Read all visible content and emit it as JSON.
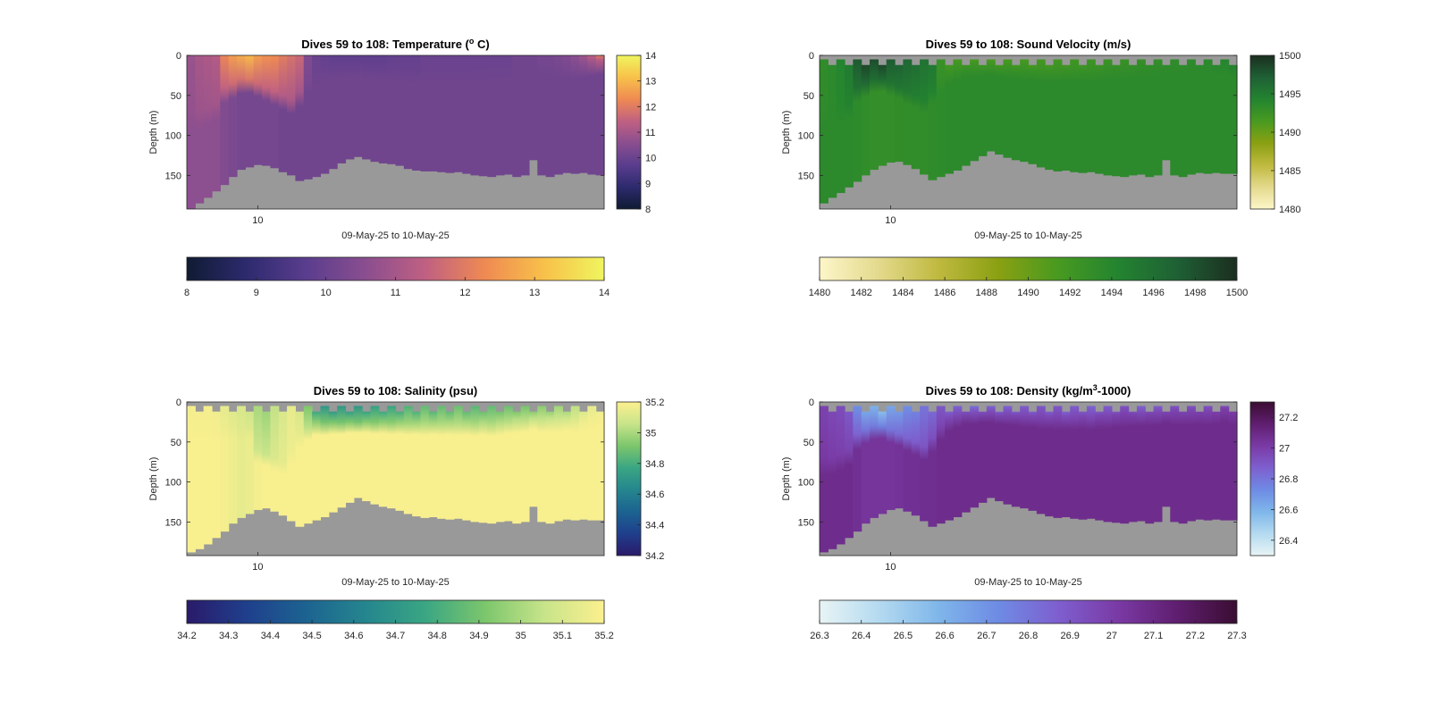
{
  "figure": {
    "background": "#ffffff",
    "terrain_color": "#999999"
  },
  "chart_data": [
    {
      "type": "heatmap",
      "title_main": "Dives 59 to 108: Temperature (",
      "title_sup": "o",
      "title_end": " C)",
      "xlabel": "09-May-25 to 10-May-25",
      "ylabel": "Depth (m)",
      "x_tick_labels": [
        "10"
      ],
      "y_ticks": [
        0,
        50,
        100,
        150
      ],
      "ylim": [
        0,
        192
      ],
      "invert_y": true,
      "dives": 50,
      "clim": [
        8,
        14
      ],
      "colormap": [
        "#0f1b33",
        "#2d2a6e",
        "#5a3d8e",
        "#8a4e8f",
        "#c06082",
        "#ef8a52",
        "#f8c14a",
        "#eff55f"
      ],
      "colorbar_right_ticks": [
        8,
        9,
        10,
        11,
        12,
        13,
        14
      ],
      "colorbar_bottom_ticks": [
        8,
        9,
        10,
        11,
        12,
        13,
        14
      ],
      "surface_depth_m": [
        0,
        0,
        0,
        0,
        0,
        0,
        0,
        0,
        0,
        0,
        0,
        0,
        0,
        0,
        0,
        0,
        0,
        0,
        0,
        0,
        0,
        0,
        0,
        0,
        0,
        0,
        0,
        0,
        0,
        0,
        0,
        0,
        0,
        0,
        0,
        0,
        0,
        0,
        0,
        0,
        0,
        0,
        0,
        0,
        0,
        0,
        0,
        0,
        0,
        0
      ],
      "bottom_depth_m": [
        192,
        185,
        178,
        170,
        162,
        152,
        143,
        140,
        137,
        138,
        141,
        146,
        150,
        157,
        155,
        152,
        148,
        142,
        135,
        130,
        127,
        130,
        133,
        135,
        136,
        138,
        142,
        144,
        145,
        145,
        146,
        147,
        146,
        148,
        150,
        151,
        152,
        150,
        149,
        152,
        150,
        131,
        150,
        152,
        149,
        147,
        148,
        147,
        149,
        150
      ],
      "mixed_layer_m": [
        70,
        70,
        65,
        60,
        40,
        35,
        30,
        30,
        35,
        40,
        45,
        50,
        55,
        45,
        30,
        20,
        15,
        12,
        12,
        12,
        12,
        14,
        14,
        15,
        16,
        17,
        18,
        18,
        18,
        18,
        18,
        18,
        18,
        17,
        16,
        15,
        14,
        14,
        13,
        13,
        12,
        12,
        12,
        12,
        12,
        12,
        12,
        10,
        8,
        6
      ],
      "surface_value": [
        10.8,
        11.0,
        11.1,
        11.2,
        12.2,
        12.6,
        12.8,
        13.0,
        12.6,
        12.4,
        12.3,
        12.0,
        11.8,
        11.6,
        10.4,
        10.0,
        9.9,
        9.8,
        9.8,
        9.8,
        9.8,
        9.8,
        9.8,
        9.8,
        9.9,
        9.9,
        9.9,
        9.9,
        10.0,
        10.0,
        10.0,
        10.0,
        10.0,
        10.0,
        10.0,
        10.0,
        10.0,
        10.0,
        10.0,
        10.1,
        10.1,
        10.1,
        10.2,
        10.2,
        10.3,
        10.4,
        10.6,
        10.9,
        11.4,
        12.0
      ],
      "deep_value": [
        10.6,
        10.6,
        10.6,
        10.6,
        10.4,
        10.3,
        10.2,
        10.2,
        10.2,
        10.2,
        10.2,
        10.1,
        10.1,
        10.1,
        10.1,
        10.1,
        10.1,
        10.1,
        10.1,
        10.1,
        10.1,
        10.1,
        10.1,
        10.1,
        10.1,
        10.1,
        10.1,
        10.1,
        10.1,
        10.1,
        10.1,
        10.1,
        10.1,
        10.1,
        10.1,
        10.1,
        10.1,
        10.1,
        10.1,
        10.1,
        10.1,
        10.1,
        10.1,
        10.1,
        10.1,
        10.1,
        10.1,
        10.1,
        10.1,
        10.1
      ]
    },
    {
      "type": "heatmap",
      "title_main": "Dives 59 to 108: Sound Velocity (m/s)",
      "title_sup": "",
      "title_end": "",
      "xlabel": "09-May-25 to 10-May-25",
      "ylabel": "Depth (m)",
      "x_tick_labels": [
        "10"
      ],
      "y_ticks": [
        0,
        50,
        100,
        150
      ],
      "ylim": [
        0,
        192
      ],
      "invert_y": true,
      "dives": 50,
      "clim": [
        1480,
        1500
      ],
      "colormap": [
        "#fdf6c9",
        "#e3d98c",
        "#bfb93f",
        "#8aa012",
        "#489a20",
        "#238430",
        "#1f6035",
        "#1b2e1f"
      ],
      "colorbar_right_ticks": [
        1480,
        1485,
        1490,
        1495,
        1500
      ],
      "colorbar_bottom_ticks": [
        1480,
        1482,
        1484,
        1486,
        1488,
        1490,
        1492,
        1494,
        1496,
        1498,
        1500
      ],
      "surface_depth_m": [
        5,
        12,
        5,
        12,
        5,
        12,
        5,
        12,
        5,
        12,
        5,
        12,
        5,
        12,
        5,
        12,
        5,
        12,
        5,
        12,
        5,
        12,
        5,
        12,
        5,
        12,
        5,
        12,
        5,
        12,
        5,
        12,
        5,
        12,
        5,
        12,
        5,
        12,
        5,
        12,
        5,
        12,
        5,
        12,
        5,
        12,
        5,
        12,
        5,
        12
      ],
      "bottom_depth_m": [
        185,
        178,
        172,
        165,
        158,
        150,
        143,
        138,
        134,
        133,
        137,
        142,
        149,
        156,
        152,
        148,
        144,
        138,
        132,
        126,
        120,
        124,
        128,
        131,
        133,
        136,
        140,
        143,
        145,
        144,
        146,
        147,
        146,
        148,
        150,
        151,
        152,
        150,
        149,
        152,
        150,
        131,
        150,
        152,
        149,
        147,
        148,
        147,
        148,
        148
      ],
      "mixed_layer_m": [
        70,
        70,
        65,
        60,
        40,
        35,
        30,
        30,
        35,
        40,
        45,
        50,
        55,
        45,
        30,
        20,
        15,
        12,
        12,
        12,
        12,
        14,
        14,
        15,
        16,
        17,
        18,
        18,
        18,
        18,
        18,
        18,
        18,
        17,
        16,
        15,
        14,
        14,
        13,
        13,
        12,
        12,
        12,
        12,
        12,
        12,
        12,
        10,
        8,
        6
      ],
      "surface_value": [
        1493.2,
        1493.6,
        1494.2,
        1495.0,
        1497.5,
        1498.6,
        1498.2,
        1498.6,
        1497.4,
        1497.0,
        1496.6,
        1496.0,
        1495.6,
        1495.2,
        1492.6,
        1491.8,
        1491.5,
        1491.4,
        1491.4,
        1491.4,
        1491.4,
        1491.4,
        1491.5,
        1491.5,
        1491.6,
        1491.6,
        1491.7,
        1491.7,
        1491.8,
        1491.9,
        1492.0,
        1492.1,
        1492.2,
        1492.3,
        1492.4,
        1492.5,
        1492.6,
        1492.7,
        1492.8,
        1492.9,
        1493.0,
        1493.1,
        1493.2,
        1493.3,
        1493.4,
        1493.5,
        1493.6,
        1493.8,
        1494.2,
        1494.8
      ],
      "deep_value": [
        1493.6,
        1493.6,
        1493.6,
        1493.6,
        1493.4,
        1493.2,
        1493.0,
        1493.0,
        1493.0,
        1493.1,
        1493.2,
        1493.2,
        1493.2,
        1493.3,
        1493.4,
        1493.5,
        1493.6,
        1493.6,
        1493.6,
        1493.6,
        1493.6,
        1493.6,
        1493.6,
        1493.6,
        1493.6,
        1493.6,
        1493.6,
        1493.6,
        1493.6,
        1493.6,
        1493.6,
        1493.6,
        1493.6,
        1493.6,
        1493.6,
        1493.6,
        1493.6,
        1493.6,
        1493.6,
        1493.6,
        1493.6,
        1493.6,
        1493.6,
        1493.6,
        1493.6,
        1493.6,
        1493.6,
        1493.6,
        1493.6,
        1493.6
      ]
    },
    {
      "type": "heatmap",
      "title_main": "Dives 59 to 108: Salinity (psu)",
      "title_sup": "",
      "title_end": "",
      "xlabel": "09-May-25 to 10-May-25",
      "ylabel": "Depth (m)",
      "x_tick_labels": [
        "10"
      ],
      "y_ticks": [
        0,
        50,
        100,
        150
      ],
      "ylim": [
        0,
        192
      ],
      "invert_y": true,
      "dives": 50,
      "clim": [
        34.2,
        35.2
      ],
      "colormap": [
        "#2a1a6a",
        "#1f3f8c",
        "#1c6391",
        "#25868e",
        "#3aa683",
        "#7cc66c",
        "#c8e48a",
        "#fcf08f"
      ],
      "colorbar_right_ticks": [
        34.2,
        34.4,
        34.6,
        34.8,
        35,
        35.2
      ],
      "colorbar_bottom_ticks": [
        34.2,
        34.3,
        34.4,
        34.5,
        34.6,
        34.7,
        34.8,
        34.9,
        35,
        35.1,
        35.2
      ],
      "surface_depth_m": [
        5,
        12,
        5,
        12,
        5,
        12,
        5,
        12,
        5,
        12,
        5,
        12,
        5,
        12,
        5,
        12,
        5,
        12,
        5,
        12,
        5,
        12,
        5,
        12,
        5,
        12,
        5,
        12,
        5,
        12,
        5,
        12,
        5,
        12,
        5,
        12,
        5,
        12,
        5,
        12,
        5,
        12,
        5,
        12,
        5,
        12,
        5,
        12,
        5,
        12
      ],
      "bottom_depth_m": [
        188,
        184,
        178,
        170,
        162,
        152,
        145,
        140,
        135,
        133,
        137,
        142,
        149,
        156,
        152,
        148,
        144,
        138,
        132,
        126,
        120,
        124,
        128,
        131,
        133,
        136,
        140,
        143,
        145,
        144,
        146,
        147,
        146,
        148,
        150,
        151,
        152,
        150,
        149,
        152,
        150,
        131,
        150,
        152,
        149,
        147,
        148,
        147,
        148,
        148
      ],
      "mixed_layer_m": [
        30,
        30,
        30,
        30,
        30,
        30,
        30,
        30,
        60,
        65,
        70,
        75,
        60,
        40,
        30,
        25,
        25,
        25,
        25,
        25,
        25,
        25,
        25,
        25,
        25,
        25,
        25,
        25,
        25,
        25,
        25,
        25,
        25,
        25,
        25,
        25,
        25,
        25,
        22,
        22,
        20,
        20,
        20,
        20,
        20,
        20,
        20,
        18,
        16,
        15
      ],
      "surface_value": [
        35.18,
        35.18,
        35.18,
        35.17,
        35.14,
        35.12,
        35.1,
        35.08,
        35.0,
        34.98,
        35.05,
        35.1,
        35.14,
        35.1,
        34.92,
        34.78,
        34.7,
        34.72,
        34.7,
        34.74,
        34.7,
        34.76,
        34.74,
        34.78,
        34.76,
        34.8,
        34.82,
        34.82,
        34.86,
        34.84,
        34.86,
        34.86,
        34.88,
        34.86,
        34.84,
        34.88,
        34.86,
        34.9,
        34.88,
        34.92,
        34.9,
        34.94,
        34.94,
        34.96,
        34.98,
        35.0,
        35.04,
        35.1,
        35.14,
        35.16
      ],
      "deep_value": [
        35.19,
        35.19,
        35.19,
        35.19,
        35.18,
        35.16,
        35.14,
        35.15,
        35.18,
        35.19,
        35.19,
        35.19,
        35.19,
        35.19,
        35.19,
        35.19,
        35.19,
        35.19,
        35.19,
        35.19,
        35.19,
        35.19,
        35.19,
        35.19,
        35.19,
        35.19,
        35.19,
        35.19,
        35.19,
        35.19,
        35.19,
        35.19,
        35.19,
        35.19,
        35.19,
        35.19,
        35.19,
        35.19,
        35.19,
        35.19,
        35.19,
        35.19,
        35.19,
        35.19,
        35.19,
        35.19,
        35.19,
        35.19,
        35.19,
        35.19
      ]
    },
    {
      "type": "heatmap",
      "title_main": "Dives 59 to 108: Density (kg/m",
      "title_sup": "3",
      "title_end": "-1000)",
      "xlabel": "09-May-25 to 10-May-25",
      "ylabel": "Depth (m)",
      "x_tick_labels": [
        "10"
      ],
      "y_ticks": [
        0,
        50,
        100,
        150
      ],
      "ylim": [
        0,
        192
      ],
      "invert_y": true,
      "dives": 50,
      "clim": [
        26.3,
        27.3
      ],
      "colormap": [
        "#e8f4f5",
        "#b4daf0",
        "#7fb6ea",
        "#6e8be4",
        "#7e5fcf",
        "#7a3aa5",
        "#5f1e6f",
        "#3a0d32"
      ],
      "colorbar_right_ticks": [
        26.4,
        26.6,
        26.8,
        27,
        27.2
      ],
      "colorbar_bottom_ticks": [
        26.3,
        26.4,
        26.5,
        26.6,
        26.7,
        26.8,
        26.9,
        27,
        27.1,
        27.2,
        27.3
      ],
      "surface_depth_m": [
        5,
        12,
        5,
        12,
        5,
        12,
        5,
        12,
        5,
        12,
        5,
        12,
        5,
        12,
        5,
        12,
        5,
        12,
        5,
        12,
        5,
        12,
        5,
        12,
        5,
        12,
        5,
        12,
        5,
        12,
        5,
        12,
        5,
        12,
        5,
        12,
        5,
        12,
        5,
        12,
        5,
        12,
        5,
        12,
        5,
        12,
        5,
        12,
        5,
        12
      ],
      "bottom_depth_m": [
        188,
        184,
        178,
        170,
        162,
        152,
        145,
        140,
        135,
        133,
        137,
        142,
        149,
        156,
        152,
        148,
        144,
        138,
        132,
        126,
        120,
        124,
        128,
        131,
        133,
        136,
        140,
        143,
        145,
        144,
        146,
        147,
        146,
        148,
        150,
        151,
        152,
        150,
        149,
        152,
        150,
        131,
        150,
        152,
        149,
        147,
        148,
        147,
        148,
        148
      ],
      "mixed_layer_m": [
        70,
        70,
        65,
        60,
        40,
        35,
        30,
        30,
        35,
        40,
        45,
        50,
        55,
        45,
        30,
        20,
        15,
        12,
        12,
        12,
        12,
        14,
        14,
        15,
        16,
        17,
        18,
        18,
        18,
        18,
        18,
        18,
        18,
        17,
        16,
        15,
        14,
        14,
        13,
        13,
        12,
        12,
        12,
        12,
        12,
        12,
        12,
        10,
        8,
        6
      ],
      "surface_value": [
        26.98,
        26.96,
        26.94,
        26.9,
        26.72,
        26.64,
        26.6,
        26.56,
        26.64,
        26.68,
        26.72,
        26.76,
        26.8,
        26.84,
        26.9,
        26.88,
        26.86,
        26.84,
        26.82,
        26.84,
        26.86,
        26.84,
        26.86,
        26.86,
        26.88,
        26.88,
        26.9,
        26.88,
        26.9,
        26.86,
        26.88,
        26.9,
        26.86,
        26.9,
        26.88,
        26.9,
        26.92,
        26.9,
        26.86,
        26.9,
        26.88,
        26.9,
        26.92,
        26.9,
        26.92,
        26.92,
        26.92,
        26.94,
        26.94,
        26.96
      ],
      "deep_value": [
        27.08,
        27.08,
        27.08,
        27.08,
        27.06,
        27.04,
        27.04,
        27.04,
        27.04,
        27.05,
        27.06,
        27.06,
        27.07,
        27.07,
        27.08,
        27.08,
        27.08,
        27.08,
        27.08,
        27.08,
        27.08,
        27.08,
        27.08,
        27.08,
        27.08,
        27.08,
        27.08,
        27.08,
        27.08,
        27.08,
        27.08,
        27.08,
        27.08,
        27.08,
        27.08,
        27.08,
        27.08,
        27.08,
        27.08,
        27.08,
        27.08,
        27.08,
        27.08,
        27.08,
        27.08,
        27.08,
        27.08,
        27.08,
        27.08,
        27.08
      ]
    }
  ]
}
